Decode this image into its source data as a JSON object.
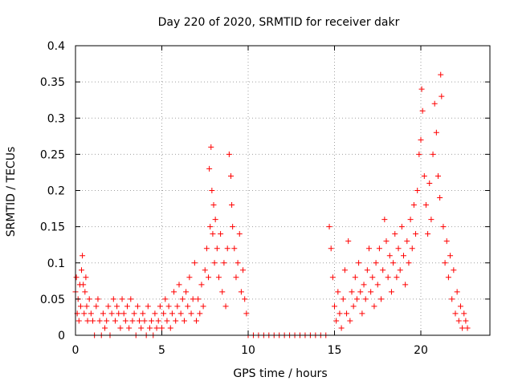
{
  "chart_data": {
    "type": "scatter",
    "title": "Day 220 of 2020, SRMTID for receiver dakr",
    "xlabel": "GPS time / hours",
    "ylabel": "SRMTID / TECUs",
    "xlim": [
      0,
      24
    ],
    "ylim": [
      0,
      0.4
    ],
    "xticks": [
      0,
      5,
      10,
      15,
      20
    ],
    "xtick_labels": [
      "0",
      "5",
      "10",
      "15",
      "20"
    ],
    "yticks": [
      0,
      0.05,
      0.1,
      0.15,
      0.2,
      0.25,
      0.3,
      0.35,
      0.4
    ],
    "ytick_labels": [
      "0",
      "0.05",
      "0.1",
      "0.15",
      "0.2",
      "0.25",
      "0.3",
      "0.35",
      "0.4"
    ],
    "grid": true,
    "marker": "+",
    "color": "#ff0000",
    "series": [
      {
        "name": "SRMTID",
        "points": [
          [
            0.0,
            0.06
          ],
          [
            0.05,
            0.08
          ],
          [
            0.1,
            0.03
          ],
          [
            0.15,
            0.05
          ],
          [
            0.2,
            0.02
          ],
          [
            0.25,
            0.07
          ],
          [
            0.3,
            0.04
          ],
          [
            0.35,
            0.09
          ],
          [
            0.4,
            0.11
          ],
          [
            0.45,
            0.07
          ],
          [
            0.5,
            0.03
          ],
          [
            0.55,
            0.06
          ],
          [
            0.6,
            0.08
          ],
          [
            0.65,
            0.04
          ],
          [
            0.7,
            0.02
          ],
          [
            0.8,
            0.05
          ],
          [
            0.9,
            0.03
          ],
          [
            1.0,
            0.02
          ],
          [
            1.1,
            0.0
          ],
          [
            1.2,
            0.04
          ],
          [
            1.3,
            0.05
          ],
          [
            1.4,
            0.02
          ],
          [
            1.5,
            0.0
          ],
          [
            1.6,
            0.03
          ],
          [
            1.7,
            0.01
          ],
          [
            1.8,
            0.02
          ],
          [
            1.9,
            0.04
          ],
          [
            2.0,
            0.0
          ],
          [
            2.1,
            0.03
          ],
          [
            2.2,
            0.05
          ],
          [
            2.3,
            0.02
          ],
          [
            2.4,
            0.04
          ],
          [
            2.5,
            0.03
          ],
          [
            2.6,
            0.01
          ],
          [
            2.7,
            0.05
          ],
          [
            2.8,
            0.03
          ],
          [
            2.9,
            0.02
          ],
          [
            3.0,
            0.04
          ],
          [
            3.1,
            0.01
          ],
          [
            3.2,
            0.05
          ],
          [
            3.3,
            0.02
          ],
          [
            3.4,
            0.03
          ],
          [
            3.5,
            0.0
          ],
          [
            3.6,
            0.04
          ],
          [
            3.7,
            0.02
          ],
          [
            3.8,
            0.01
          ],
          [
            3.9,
            0.03
          ],
          [
            4.0,
            0.02
          ],
          [
            4.1,
            0.0
          ],
          [
            4.2,
            0.04
          ],
          [
            4.3,
            0.01
          ],
          [
            4.4,
            0.02
          ],
          [
            4.5,
            0.0
          ],
          [
            4.6,
            0.03
          ],
          [
            4.7,
            0.01
          ],
          [
            4.8,
            0.02
          ],
          [
            4.9,
            0.04
          ],
          [
            5.0,
            0.01
          ],
          [
            5.1,
            0.03
          ],
          [
            5.2,
            0.05
          ],
          [
            5.3,
            0.02
          ],
          [
            5.4,
            0.04
          ],
          [
            5.5,
            0.01
          ],
          [
            5.6,
            0.03
          ],
          [
            5.7,
            0.06
          ],
          [
            5.8,
            0.02
          ],
          [
            5.9,
            0.04
          ],
          [
            6.0,
            0.07
          ],
          [
            6.1,
            0.03
          ],
          [
            6.2,
            0.05
          ],
          [
            6.3,
            0.02
          ],
          [
            6.4,
            0.06
          ],
          [
            6.5,
            0.04
          ],
          [
            6.6,
            0.08
          ],
          [
            6.7,
            0.03
          ],
          [
            6.8,
            0.05
          ],
          [
            6.9,
            0.1
          ],
          [
            7.0,
            0.02
          ],
          [
            7.1,
            0.05
          ],
          [
            7.2,
            0.03
          ],
          [
            7.3,
            0.07
          ],
          [
            7.4,
            0.04
          ],
          [
            7.5,
            0.09
          ],
          [
            7.6,
            0.12
          ],
          [
            7.7,
            0.08
          ],
          [
            7.75,
            0.23
          ],
          [
            7.8,
            0.15
          ],
          [
            7.85,
            0.26
          ],
          [
            7.9,
            0.2
          ],
          [
            7.95,
            0.14
          ],
          [
            8.0,
            0.18
          ],
          [
            8.05,
            0.1
          ],
          [
            8.1,
            0.16
          ],
          [
            8.2,
            0.12
          ],
          [
            8.3,
            0.08
          ],
          [
            8.4,
            0.14
          ],
          [
            8.5,
            0.06
          ],
          [
            8.6,
            0.1
          ],
          [
            8.7,
            0.04
          ],
          [
            8.8,
            0.12
          ],
          [
            8.9,
            0.25
          ],
          [
            9.0,
            0.22
          ],
          [
            9.05,
            0.18
          ],
          [
            9.1,
            0.15
          ],
          [
            9.2,
            0.12
          ],
          [
            9.3,
            0.08
          ],
          [
            9.4,
            0.1
          ],
          [
            9.5,
            0.14
          ],
          [
            9.6,
            0.06
          ],
          [
            9.7,
            0.09
          ],
          [
            9.8,
            0.05
          ],
          [
            9.9,
            0.03
          ],
          [
            10.0,
            0.0
          ],
          [
            10.3,
            0.0
          ],
          [
            10.6,
            0.0
          ],
          [
            10.9,
            0.0
          ],
          [
            11.2,
            0.0
          ],
          [
            11.5,
            0.0
          ],
          [
            11.8,
            0.0
          ],
          [
            12.1,
            0.0
          ],
          [
            12.4,
            0.0
          ],
          [
            12.7,
            0.0
          ],
          [
            13.0,
            0.0
          ],
          [
            13.3,
            0.0
          ],
          [
            13.6,
            0.0
          ],
          [
            13.9,
            0.0
          ],
          [
            14.2,
            0.0
          ],
          [
            14.5,
            0.0
          ],
          [
            14.7,
            0.15
          ],
          [
            14.8,
            0.12
          ],
          [
            14.9,
            0.08
          ],
          [
            15.0,
            0.04
          ],
          [
            15.1,
            0.02
          ],
          [
            15.2,
            0.06
          ],
          [
            15.3,
            0.03
          ],
          [
            15.4,
            0.01
          ],
          [
            15.5,
            0.05
          ],
          [
            15.6,
            0.09
          ],
          [
            15.7,
            0.03
          ],
          [
            15.8,
            0.13
          ],
          [
            15.9,
            0.02
          ],
          [
            16.0,
            0.06
          ],
          [
            16.1,
            0.04
          ],
          [
            16.2,
            0.08
          ],
          [
            16.3,
            0.05
          ],
          [
            16.4,
            0.1
          ],
          [
            16.5,
            0.06
          ],
          [
            16.6,
            0.03
          ],
          [
            16.7,
            0.07
          ],
          [
            16.8,
            0.05
          ],
          [
            16.9,
            0.09
          ],
          [
            17.0,
            0.12
          ],
          [
            17.1,
            0.06
          ],
          [
            17.2,
            0.08
          ],
          [
            17.3,
            0.04
          ],
          [
            17.4,
            0.1
          ],
          [
            17.5,
            0.07
          ],
          [
            17.6,
            0.12
          ],
          [
            17.7,
            0.05
          ],
          [
            17.8,
            0.09
          ],
          [
            17.9,
            0.16
          ],
          [
            18.0,
            0.13
          ],
          [
            18.1,
            0.08
          ],
          [
            18.2,
            0.11
          ],
          [
            18.3,
            0.06
          ],
          [
            18.4,
            0.1
          ],
          [
            18.5,
            0.14
          ],
          [
            18.6,
            0.08
          ],
          [
            18.7,
            0.12
          ],
          [
            18.8,
            0.09
          ],
          [
            18.9,
            0.15
          ],
          [
            19.0,
            0.11
          ],
          [
            19.1,
            0.07
          ],
          [
            19.2,
            0.13
          ],
          [
            19.3,
            0.1
          ],
          [
            19.4,
            0.16
          ],
          [
            19.5,
            0.12
          ],
          [
            19.6,
            0.18
          ],
          [
            19.7,
            0.14
          ],
          [
            19.8,
            0.2
          ],
          [
            19.9,
            0.25
          ],
          [
            20.0,
            0.27
          ],
          [
            20.05,
            0.34
          ],
          [
            20.1,
            0.31
          ],
          [
            20.2,
            0.22
          ],
          [
            20.3,
            0.18
          ],
          [
            20.4,
            0.14
          ],
          [
            20.5,
            0.21
          ],
          [
            20.6,
            0.16
          ],
          [
            20.7,
            0.25
          ],
          [
            20.8,
            0.32
          ],
          [
            20.9,
            0.28
          ],
          [
            21.0,
            0.22
          ],
          [
            21.1,
            0.19
          ],
          [
            21.15,
            0.36
          ],
          [
            21.2,
            0.33
          ],
          [
            21.3,
            0.15
          ],
          [
            21.4,
            0.1
          ],
          [
            21.5,
            0.13
          ],
          [
            21.6,
            0.08
          ],
          [
            21.7,
            0.11
          ],
          [
            21.8,
            0.05
          ],
          [
            21.9,
            0.09
          ],
          [
            22.0,
            0.03
          ],
          [
            22.1,
            0.06
          ],
          [
            22.2,
            0.02
          ],
          [
            22.3,
            0.04
          ],
          [
            22.4,
            0.01
          ],
          [
            22.5,
            0.03
          ],
          [
            22.6,
            0.02
          ],
          [
            22.7,
            0.01
          ]
        ]
      }
    ]
  }
}
